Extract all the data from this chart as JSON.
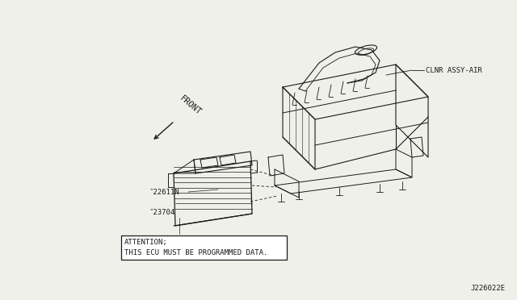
{
  "bg_color": "#f0f0eb",
  "line_color": "#1a1a1a",
  "diagram_id": "J226022E",
  "label_clnr": "CLNR ASSY-AIR",
  "label_front": "FRONT",
  "label_part1": "‶22611N",
  "label_part2": "‶23704",
  "attention_line1": "ATTENTION;",
  "attention_line2": "THIS ECU MUST BE PROGRAMMED DATA.",
  "font_size_labels": 6.5,
  "font_size_id": 6.5,
  "font_size_attention": 6.5,
  "font_size_front": 7.5
}
